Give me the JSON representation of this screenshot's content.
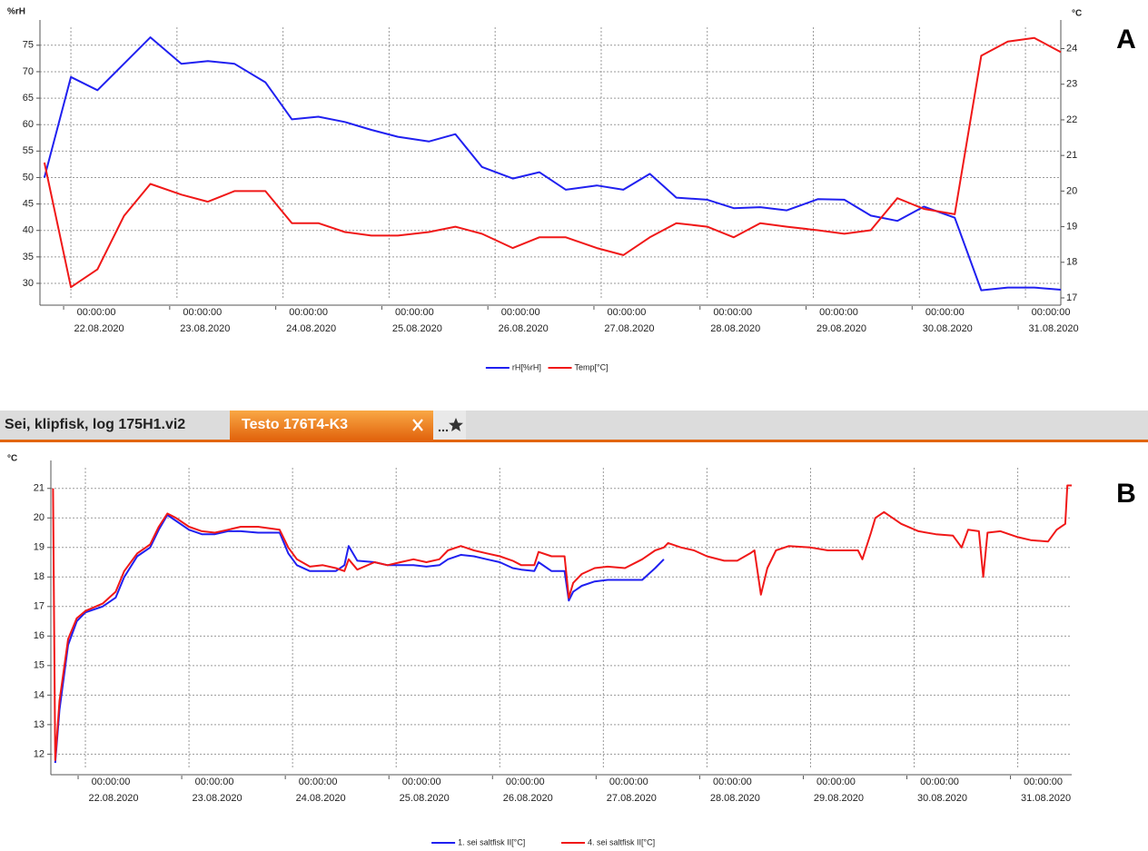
{
  "tabs": [
    "Sei, klipfisk, log 175H1.vi2",
    "Testo 176T4-K3"
  ],
  "chart_data": [
    {
      "type": "line",
      "panel_label": "A",
      "y_label": "%rH",
      "y2_label": "°C",
      "x": [
        "2020-08-21T18:00",
        "2020-08-22T00:00",
        "2020-08-22T06:00",
        "2020-08-22T12:00",
        "2020-08-22T18:00",
        "2020-08-23T01:00",
        "2020-08-23T07:00",
        "2020-08-23T13:00",
        "2020-08-23T20:00",
        "2020-08-24T02:00",
        "2020-08-24T08:00",
        "2020-08-24T14:00",
        "2020-08-24T20:00",
        "2020-08-25T02:00",
        "2020-08-25T09:00",
        "2020-08-25T15:00",
        "2020-08-25T21:00",
        "2020-08-26T04:00",
        "2020-08-26T10:00",
        "2020-08-26T16:00",
        "2020-08-26T23:00",
        "2020-08-27T05:00",
        "2020-08-27T11:00",
        "2020-08-27T17:00",
        "2020-08-28T00:00",
        "2020-08-28T06:00",
        "2020-08-28T12:00",
        "2020-08-28T18:00",
        "2020-08-29T01:00",
        "2020-08-29T07:00",
        "2020-08-29T13:00",
        "2020-08-29T19:00",
        "2020-08-30T01:00",
        "2020-08-30T08:00",
        "2020-08-30T14:00",
        "2020-08-30T20:00",
        "2020-08-31T02:00",
        "2020-08-31T08:00"
      ],
      "series": [
        {
          "name": "rH[%rH]",
          "color": "#2020f0",
          "axis": "y",
          "values": [
            50,
            69,
            66.5,
            71.5,
            76.5,
            71.5,
            72,
            71.5,
            68,
            61,
            61.5,
            60.5,
            59,
            57.7,
            56.8,
            58.2,
            52,
            49.8,
            51,
            47.7,
            48.5,
            47.7,
            50.7,
            46.2,
            45.8,
            44.2,
            44.4,
            43.8,
            45.9,
            45.8,
            42.8,
            41.8,
            44.5,
            42.4,
            28.7,
            29.2,
            29.2,
            28.8
          ]
        },
        {
          "name": "Temp[°C]",
          "color": "#f01818",
          "axis": "y2",
          "values": [
            20.8,
            17.3,
            17.8,
            19.3,
            20.2,
            19.9,
            19.7,
            20.0,
            20.0,
            19.1,
            19.1,
            18.85,
            18.75,
            18.75,
            18.85,
            19.0,
            18.8,
            18.4,
            18.7,
            18.7,
            18.4,
            18.2,
            18.7,
            19.1,
            19.0,
            18.7,
            19.1,
            19.0,
            18.9,
            18.8,
            18.9,
            19.8,
            19.5,
            19.35,
            23.8,
            24.2,
            24.3,
            23.9
          ]
        }
      ],
      "xlim": [
        "2020-08-21T17:00",
        "2020-08-31T08:00"
      ],
      "xticks": [
        {
          "value": "2020-08-22T00:00",
          "label": [
            "00:00:00",
            "22.08.2020"
          ]
        },
        {
          "value": "2020-08-23T00:00",
          "label": [
            "00:00:00",
            "23.08.2020"
          ]
        },
        {
          "value": "2020-08-24T00:00",
          "label": [
            "00:00:00",
            "24.08.2020"
          ]
        },
        {
          "value": "2020-08-25T00:00",
          "label": [
            "00:00:00",
            "25.08.2020"
          ]
        },
        {
          "value": "2020-08-26T00:00",
          "label": [
            "00:00:00",
            "26.08.2020"
          ]
        },
        {
          "value": "2020-08-27T00:00",
          "label": [
            "00:00:00",
            "27.08.2020"
          ]
        },
        {
          "value": "2020-08-28T00:00",
          "label": [
            "00:00:00",
            "28.08.2020"
          ]
        },
        {
          "value": "2020-08-29T00:00",
          "label": [
            "00:00:00",
            "29.08.2020"
          ]
        },
        {
          "value": "2020-08-30T00:00",
          "label": [
            "00:00:00",
            "30.08.2020"
          ]
        },
        {
          "value": "2020-08-31T00:00",
          "label": [
            "00:00:00",
            "31.08.2020"
          ]
        }
      ],
      "ylim": [
        27.25,
        78.4
      ],
      "yticks": [
        30,
        35,
        40,
        45,
        50,
        55,
        60,
        65,
        70,
        75
      ],
      "y2lim": [
        17,
        24.6
      ],
      "y2ticks": [
        17,
        18,
        19,
        20,
        21,
        22,
        23,
        24
      ],
      "grid": true,
      "legend": "bottom"
    },
    {
      "type": "line",
      "panel_label": "B",
      "y_label": "°C",
      "x": [
        "2020-08-21T16:30",
        "2020-08-21T17:00",
        "2020-08-21T18:00",
        "2020-08-21T20:00",
        "2020-08-21T22:00",
        "2020-08-22T00:00",
        "2020-08-22T04:00",
        "2020-08-22T07:00",
        "2020-08-22T09:00",
        "2020-08-22T12:00",
        "2020-08-22T15:00",
        "2020-08-22T17:00",
        "2020-08-22T19:00",
        "2020-08-22T21:00",
        "2020-08-23T00:00",
        "2020-08-23T03:00",
        "2020-08-23T06:00",
        "2020-08-23T09:00",
        "2020-08-23T12:00",
        "2020-08-23T16:00",
        "2020-08-23T21:00",
        "2020-08-23T23:00",
        "2020-08-24T01:00",
        "2020-08-24T04:00",
        "2020-08-24T07:00",
        "2020-08-24T10:00",
        "2020-08-24T12:00",
        "2020-08-24T13:00",
        "2020-08-24T15:00",
        "2020-08-24T19:00",
        "2020-08-24T22:00",
        "2020-08-25T01:00",
        "2020-08-25T04:00",
        "2020-08-25T07:00",
        "2020-08-25T10:00",
        "2020-08-25T12:00",
        "2020-08-25T15:00",
        "2020-08-25T18:00",
        "2020-08-25T21:00",
        "2020-08-26T00:00",
        "2020-08-26T03:00",
        "2020-08-26T05:00",
        "2020-08-26T08:00",
        "2020-08-26T09:00",
        "2020-08-26T12:00",
        "2020-08-26T15:00",
        "2020-08-26T16:00",
        "2020-08-26T17:00",
        "2020-08-26T19:00",
        "2020-08-26T22:00",
        "2020-08-27T01:00",
        "2020-08-27T05:00",
        "2020-08-27T09:00",
        "2020-08-27T12:00",
        "2020-08-27T14:00",
        "2020-08-27T15:00",
        "2020-08-27T18:00",
        "2020-08-27T21:00",
        "2020-08-28T00:00",
        "2020-08-28T04:00",
        "2020-08-28T07:00",
        "2020-08-28T10:00",
        "2020-08-28T11:00",
        "2020-08-28T12:30",
        "2020-08-28T14:00",
        "2020-08-28T16:00",
        "2020-08-28T19:00",
        "2020-08-29T00:00",
        "2020-08-29T04:00",
        "2020-08-29T08:00",
        "2020-08-29T11:00",
        "2020-08-29T12:00",
        "2020-08-29T14:00",
        "2020-08-29T15:00",
        "2020-08-29T17:00",
        "2020-08-29T21:00",
        "2020-08-30T01:00",
        "2020-08-30T05:00",
        "2020-08-30T09:00",
        "2020-08-30T11:00",
        "2020-08-30T12:30",
        "2020-08-30T15:00",
        "2020-08-30T16:00",
        "2020-08-30T17:00",
        "2020-08-30T20:00",
        "2020-08-31T00:00",
        "2020-08-31T03:00",
        "2020-08-31T07:00",
        "2020-08-31T09:00",
        "2020-08-31T11:00",
        "2020-08-31T11:30",
        "2020-08-31T12:30"
      ],
      "series": [
        {
          "name": "1. sei saltfisk II[°C]",
          "color": "#2020f0",
          "axis": "y",
          "values": [
            null,
            11.7,
            13.5,
            15.7,
            16.5,
            16.8,
            17.0,
            17.3,
            18.0,
            18.7,
            19.0,
            19.6,
            20.1,
            19.9,
            19.6,
            19.45,
            19.45,
            19.55,
            19.55,
            19.5,
            19.5,
            18.8,
            18.4,
            18.2,
            18.2,
            18.2,
            18.4,
            19.05,
            18.55,
            18.5,
            18.4,
            18.4,
            18.4,
            18.35,
            18.4,
            18.6,
            18.75,
            18.7,
            18.6,
            18.5,
            18.3,
            18.25,
            18.2,
            18.5,
            18.2,
            18.2,
            17.2,
            17.5,
            17.7,
            17.85,
            17.9,
            17.9,
            17.9,
            18.3,
            18.6,
            null,
            null,
            null,
            null,
            null,
            null,
            null,
            null,
            null,
            null,
            null,
            null,
            null,
            null,
            null,
            null,
            null,
            null,
            null,
            null,
            null,
            null,
            null,
            null,
            null,
            null,
            null,
            null,
            null,
            null,
            null,
            null,
            null,
            null,
            null,
            null,
            null
          ]
        },
        {
          "name": "4. sei saltfisk II[°C]",
          "color": "#f01818",
          "axis": "y",
          "values": [
            21.0,
            11.8,
            13.8,
            15.9,
            16.6,
            16.85,
            17.1,
            17.5,
            18.2,
            18.8,
            19.1,
            19.7,
            20.15,
            20.0,
            19.7,
            19.55,
            19.5,
            19.6,
            19.7,
            19.7,
            19.6,
            19.0,
            18.6,
            18.35,
            18.4,
            18.3,
            18.2,
            18.6,
            18.25,
            18.5,
            18.4,
            18.5,
            18.6,
            18.5,
            18.6,
            18.9,
            19.05,
            18.9,
            18.8,
            18.7,
            18.55,
            18.4,
            18.4,
            18.85,
            18.7,
            18.7,
            17.3,
            17.8,
            18.1,
            18.3,
            18.35,
            18.3,
            18.6,
            18.9,
            19.0,
            19.15,
            19.0,
            18.9,
            18.7,
            18.55,
            18.55,
            18.8,
            18.9,
            17.4,
            18.3,
            18.9,
            19.05,
            19.0,
            18.9,
            18.9,
            18.9,
            18.6,
            19.5,
            20.0,
            20.2,
            19.8,
            19.55,
            19.45,
            19.4,
            19.0,
            19.6,
            19.55,
            18.0,
            19.5,
            19.55,
            19.35,
            19.25,
            19.2,
            19.6,
            19.8,
            21.1,
            21.1
          ]
        }
      ],
      "xlim": [
        "2020-08-21T16:00",
        "2020-08-31T12:30"
      ],
      "xticks": [
        {
          "value": "2020-08-22T00:00",
          "label": [
            "00:00:00",
            "22.08.2020"
          ]
        },
        {
          "value": "2020-08-23T00:00",
          "label": [
            "00:00:00",
            "23.08.2020"
          ]
        },
        {
          "value": "2020-08-24T00:00",
          "label": [
            "00:00:00",
            "24.08.2020"
          ]
        },
        {
          "value": "2020-08-25T00:00",
          "label": [
            "00:00:00",
            "25.08.2020"
          ]
        },
        {
          "value": "2020-08-26T00:00",
          "label": [
            "00:00:00",
            "26.08.2020"
          ]
        },
        {
          "value": "2020-08-27T00:00",
          "label": [
            "00:00:00",
            "27.08.2020"
          ]
        },
        {
          "value": "2020-08-28T00:00",
          "label": [
            "00:00:00",
            "28.08.2020"
          ]
        },
        {
          "value": "2020-08-29T00:00",
          "label": [
            "00:00:00",
            "29.08.2020"
          ]
        },
        {
          "value": "2020-08-30T00:00",
          "label": [
            "00:00:00",
            "30.08.2020"
          ]
        },
        {
          "value": "2020-08-31T00:00",
          "label": [
            "00:00:00",
            "31.08.2020"
          ]
        }
      ],
      "ylim": [
        11.55,
        21.7
      ],
      "yticks": [
        12,
        13,
        14,
        15,
        16,
        17,
        18,
        19,
        20,
        21
      ],
      "grid": true,
      "legend": "bottom"
    }
  ]
}
